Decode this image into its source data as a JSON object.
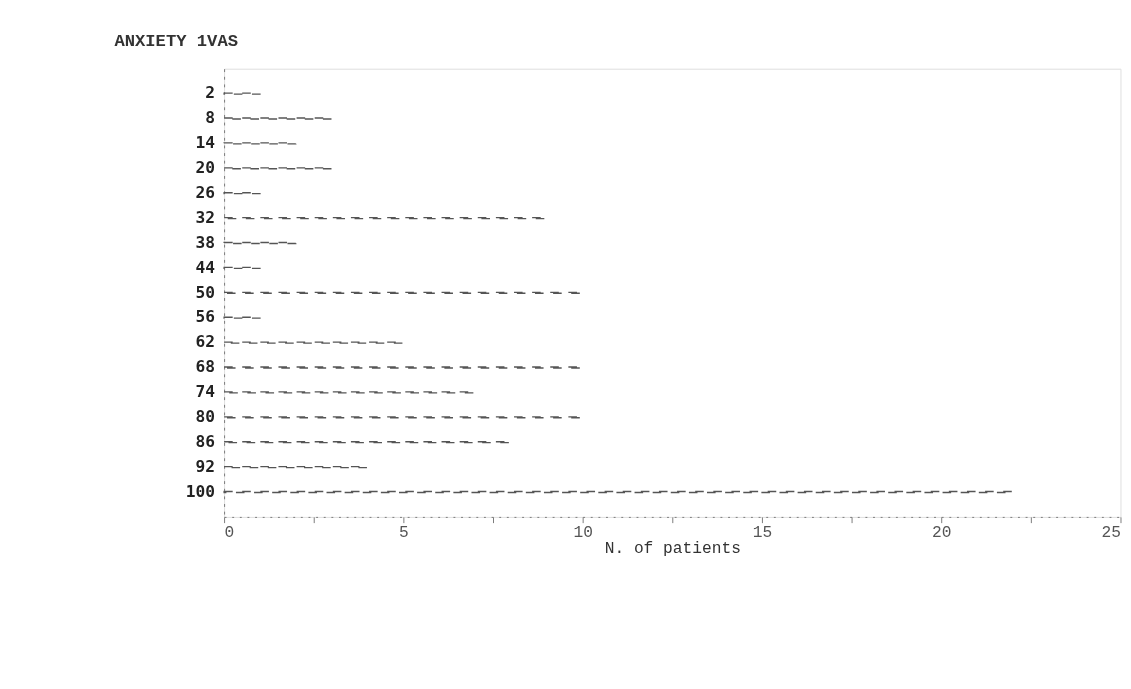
{
  "chart_data": {
    "type": "bar",
    "orientation": "horizontal",
    "title": "ANXIETY  1VAS",
    "xlabel": "N. of patients",
    "categories": [
      "2",
      "8",
      "14",
      "20",
      "26",
      "32",
      "38",
      "44",
      "50",
      "56",
      "62",
      "68",
      "74",
      "80",
      "86",
      "92",
      "100"
    ],
    "values": [
      1,
      3,
      2,
      3,
      1,
      9,
      2,
      1,
      10,
      1,
      5,
      10,
      7,
      10,
      8,
      4,
      22
    ],
    "color": "#555555",
    "line_style": "dashed",
    "xlim": [
      0,
      25
    ],
    "xticks": [
      0,
      {
        "value": 2.5,
        "label": null
      },
      5,
      {
        "value": 7.5,
        "label": null
      },
      10,
      {
        "value": 12.5,
        "label": null
      },
      15,
      {
        "value": 17.5,
        "label": null
      },
      20,
      {
        "value": 22.5,
        "label": null
      },
      25
    ],
    "grid": false
  }
}
